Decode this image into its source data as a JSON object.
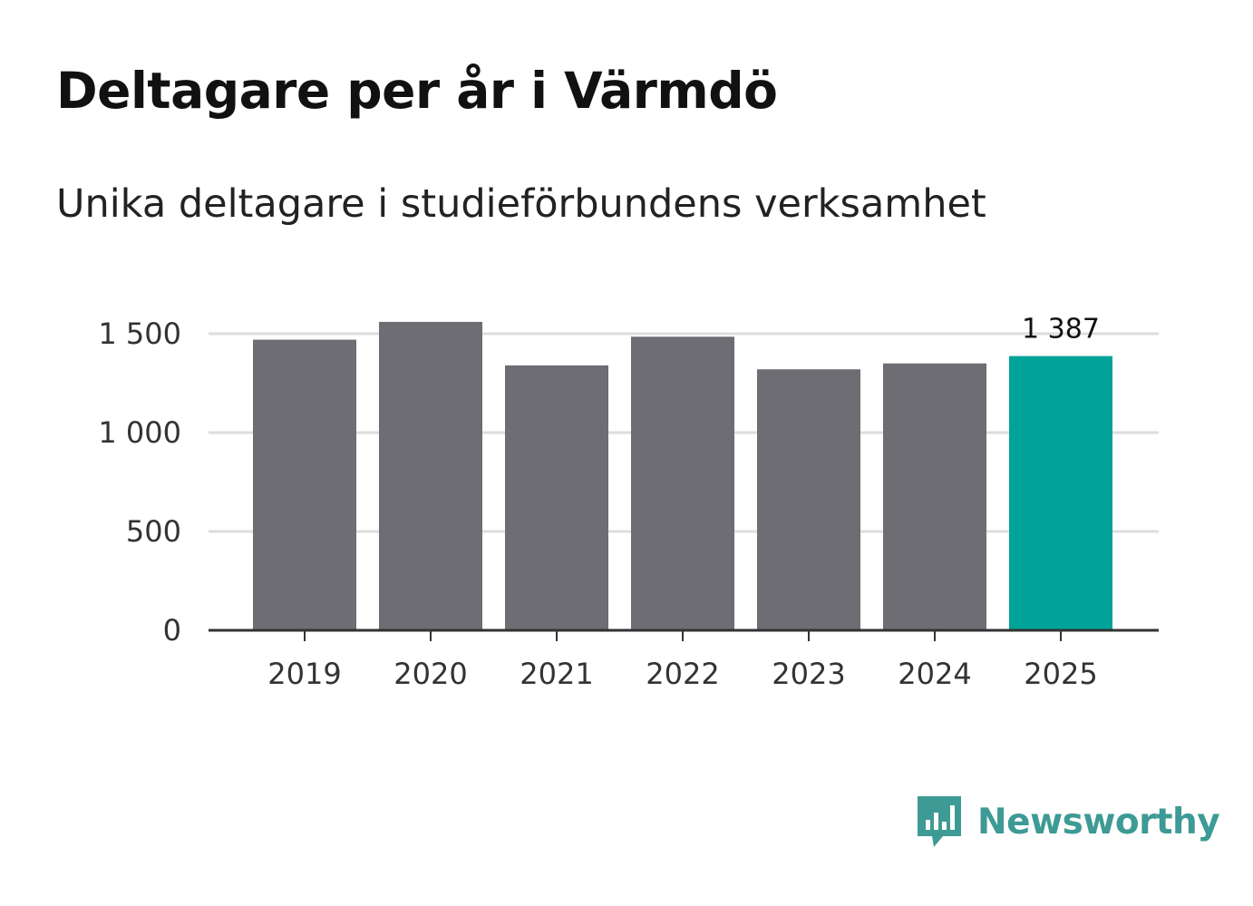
{
  "title": "Deltagare per år i Värmdö",
  "subtitle": "Unika deltagare i studieförbundens verksamhet",
  "brand": {
    "name": "Newsworthy",
    "icon": "newsworthy-logo-icon",
    "color": "#3d9a94"
  },
  "chart_data": {
    "type": "bar",
    "title": "Deltagare per år i Värmdö",
    "subtitle": "Unika deltagare i studieförbundens verksamhet",
    "xlabel": "",
    "ylabel": "",
    "categories": [
      "2019",
      "2020",
      "2021",
      "2022",
      "2023",
      "2024",
      "2025"
    ],
    "values": [
      1470,
      1560,
      1340,
      1485,
      1320,
      1350,
      1387
    ],
    "ylim": [
      0,
      1500
    ],
    "yticks": [
      0,
      500,
      1000,
      1500
    ],
    "ytick_labels": [
      "0",
      "500",
      "1 000",
      "1 500"
    ],
    "grid": true,
    "colors": {
      "bar": "#6e6d73",
      "highlight": "#00a398",
      "grid": "#dddddd",
      "axis": "#333333"
    },
    "highlight_index": 6,
    "annotations": [
      {
        "category": "2025",
        "text": "1 387"
      }
    ]
  }
}
